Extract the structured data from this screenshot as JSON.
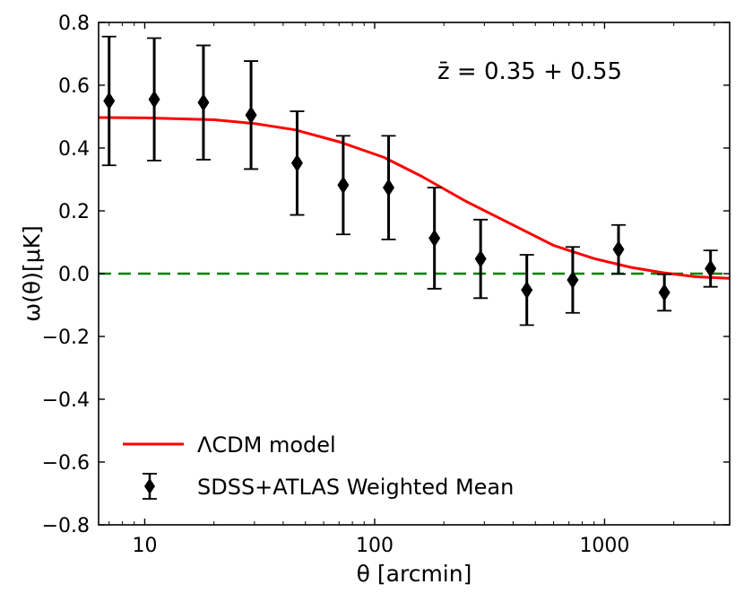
{
  "chart_data": {
    "type": "scatter",
    "xscale": "log",
    "xlim": [
      6.3,
      3500
    ],
    "ylim": [
      -0.8,
      0.8
    ],
    "xlabel": "θ [arcmin]",
    "ylabel": "ω(θ)[μK]",
    "xticks": [
      10,
      100,
      1000
    ],
    "xtick_labels": [
      "10",
      "100",
      "1000"
    ],
    "yticks": [
      -0.8,
      -0.6,
      -0.4,
      -0.2,
      0.0,
      0.2,
      0.4,
      0.6,
      0.8
    ],
    "ytick_labels": [
      "−0.8",
      "−0.6",
      "−0.4",
      "−0.2",
      "0.0",
      "0.2",
      "0.4",
      "0.6",
      "0.8"
    ],
    "annotation": "z̄ = 0.35 + 0.55",
    "legend_position": "lower-left",
    "reference_line": {
      "y": 0.0,
      "style": "dashed",
      "color": "#008000"
    },
    "series": [
      {
        "name": "ΛCDM model",
        "kind": "line",
        "color": "#ff0000",
        "x": [
          6.3,
          10,
          20,
          30,
          45,
          70,
          110,
          160,
          250,
          400,
          600,
          900,
          1300,
          1800,
          2500,
          3500
        ],
        "y": [
          0.497,
          0.496,
          0.49,
          0.478,
          0.458,
          0.42,
          0.37,
          0.31,
          0.23,
          0.155,
          0.09,
          0.048,
          0.02,
          0.003,
          -0.01,
          -0.015
        ]
      },
      {
        "name": "SDSS+ATLAS Weighted Mean",
        "kind": "errorbar",
        "color": "#000000",
        "x": [
          7,
          11,
          18,
          29,
          46,
          73,
          115,
          182,
          289,
          459,
          727,
          1150,
          1820,
          2890
        ],
        "y": [
          0.55,
          0.555,
          0.545,
          0.505,
          0.352,
          0.282,
          0.274,
          0.113,
          0.047,
          -0.052,
          -0.02,
          0.077,
          -0.06,
          0.016
        ],
        "yerr": [
          0.205,
          0.195,
          0.182,
          0.172,
          0.165,
          0.157,
          0.165,
          0.161,
          0.125,
          0.112,
          0.105,
          0.078,
          0.058,
          0.058
        ]
      }
    ]
  }
}
